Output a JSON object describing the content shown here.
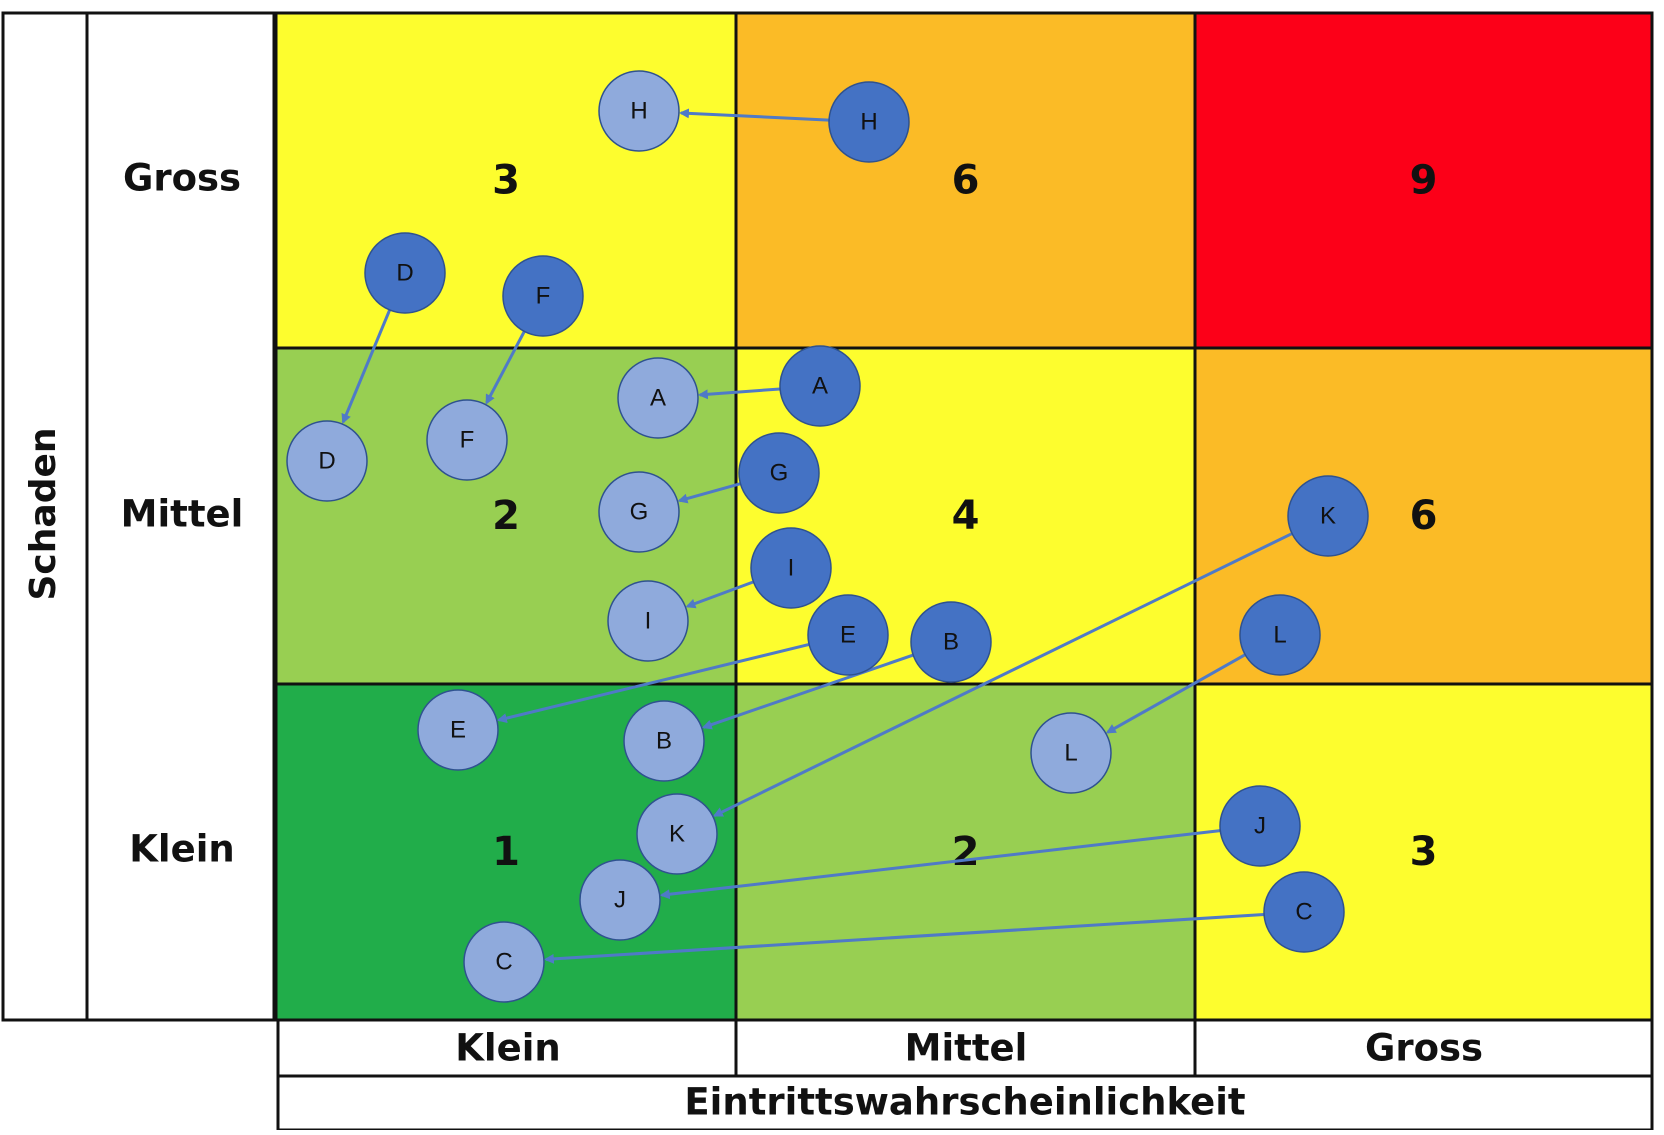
{
  "y_axis_title": "Schaden",
  "x_axis_title": "Eintrittswahrscheinlichkeit",
  "row_labels": [
    "Gross",
    "Mittel",
    "Klein"
  ],
  "col_labels": [
    "Klein",
    "Mittel",
    "Gross"
  ],
  "cells": [
    [
      {
        "value": "3",
        "color": "#fdfd2e"
      },
      {
        "value": "6",
        "color": "#fbbb26"
      },
      {
        "value": "9",
        "color": "#fc0018"
      }
    ],
    [
      {
        "value": "2",
        "color": "#98cf52"
      },
      {
        "value": "4",
        "color": "#fdfd2e"
      },
      {
        "value": "6",
        "color": "#fbbb26"
      }
    ],
    [
      {
        "value": "1",
        "color": "#21ad4a"
      },
      {
        "value": "2",
        "color": "#98cf52"
      },
      {
        "value": "3",
        "color": "#fdfd2e"
      }
    ]
  ],
  "marker_colors": {
    "before": "#4472c4",
    "after": "#8faadc",
    "arrow": "#4f7ac7",
    "stroke": "#2f528f"
  },
  "risks": [
    {
      "label": "A",
      "from": "A",
      "to": "A"
    },
    {
      "label": "B",
      "from": "B",
      "to": "B"
    },
    {
      "label": "C",
      "from": "C",
      "to": "C"
    },
    {
      "label": "D",
      "from": "D",
      "to": "D"
    },
    {
      "label": "E",
      "from": "E",
      "to": "E"
    },
    {
      "label": "F",
      "from": "F",
      "to": "F"
    },
    {
      "label": "G",
      "from": "G",
      "to": "G"
    },
    {
      "label": "H",
      "from": "H",
      "to": "H"
    },
    {
      "label": "I",
      "from": "I",
      "to": "I"
    },
    {
      "label": "J",
      "from": "J",
      "to": "J"
    },
    {
      "label": "K",
      "from": "K",
      "to": "K"
    },
    {
      "label": "L",
      "from": "L",
      "to": "L"
    }
  ]
}
